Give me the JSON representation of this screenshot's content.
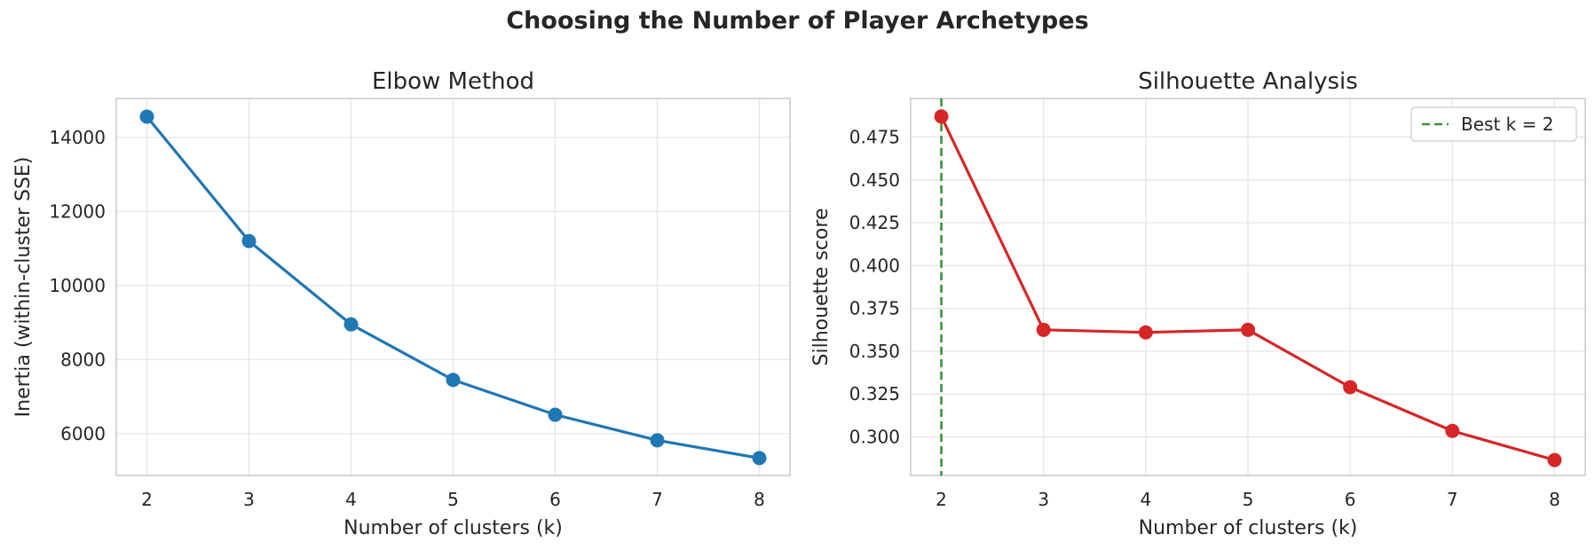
{
  "figure": {
    "title": "Choosing the Number of Player Archetypes"
  },
  "chart_data": [
    {
      "type": "line",
      "title": "Elbow Method",
      "xlabel": "Number of clusters (k)",
      "ylabel": "Inertia (within-cluster SSE)",
      "x": [
        2,
        3,
        4,
        5,
        6,
        7,
        8
      ],
      "xticks": [
        2,
        3,
        4,
        5,
        6,
        7,
        8
      ],
      "xlim": [
        1.7,
        8.3
      ],
      "ylim": [
        4870,
        15050
      ],
      "yticks": [
        6000,
        8000,
        10000,
        12000,
        14000
      ],
      "grid": true,
      "series": [
        {
          "values": [
            14560,
            11200,
            8950,
            7450,
            6510,
            5820,
            5340
          ],
          "color": "#1f77b4"
        }
      ]
    },
    {
      "type": "line",
      "title": "Silhouette Analysis",
      "xlabel": "Number of clusters (k)",
      "ylabel": "Silhouette score",
      "x": [
        2,
        3,
        4,
        5,
        6,
        7,
        8
      ],
      "xticks": [
        2,
        3,
        4,
        5,
        6,
        7,
        8
      ],
      "xlim": [
        1.7,
        8.3
      ],
      "ylim": [
        0.2775,
        0.4975
      ],
      "yticks": [
        0.3,
        0.325,
        0.35,
        0.375,
        0.4,
        0.425,
        0.45,
        0.475
      ],
      "grid": true,
      "series": [
        {
          "values": [
            0.487,
            0.3625,
            0.361,
            0.3625,
            0.329,
            0.3035,
            0.2865
          ],
          "color": "#d62728"
        }
      ],
      "vline": {
        "x": 2,
        "label": "Best k = 2",
        "color": "#3a923a",
        "style": "dashed"
      },
      "legend": {
        "position": "top-right",
        "entries": [
          "Best k = 2"
        ]
      }
    }
  ]
}
